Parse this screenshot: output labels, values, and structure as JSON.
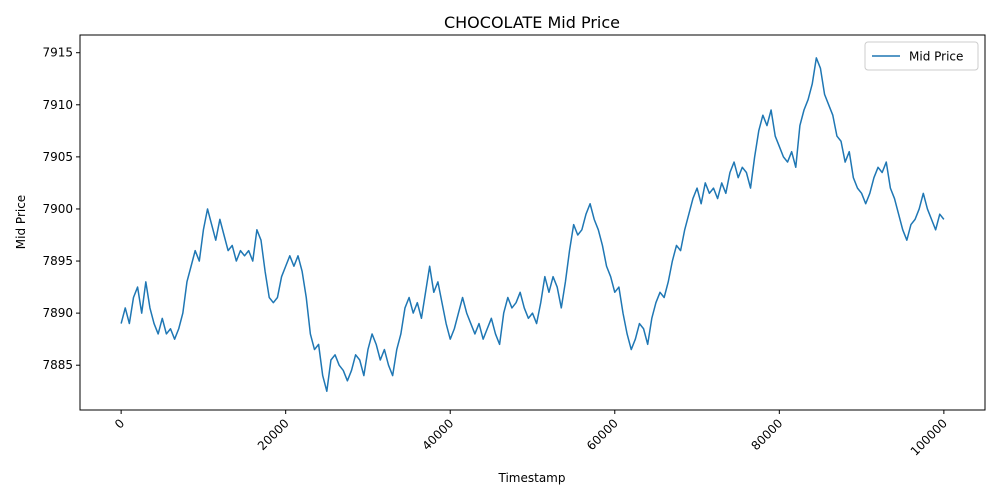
{
  "chart_data": {
    "type": "line",
    "title": "CHOCOLATE Mid Price",
    "xlabel": "Timestamp",
    "ylabel": "Mid Price",
    "xlim": [
      -5000,
      105000
    ],
    "ylim": [
      7880.7,
      7916.7
    ],
    "xticks": [
      0,
      20000,
      40000,
      60000,
      80000,
      100000
    ],
    "xtick_labels": [
      "0",
      "20000",
      "40000",
      "60000",
      "80000",
      "100000"
    ],
    "xtick_rotation": 45,
    "yticks": [
      7885,
      7890,
      7895,
      7900,
      7905,
      7910,
      7915
    ],
    "ytick_labels": [
      "7885",
      "7890",
      "7895",
      "7900",
      "7905",
      "7910",
      "7915"
    ],
    "grid": false,
    "legend_position": "top-right",
    "color": "#1f77b4",
    "series": [
      {
        "name": "Mid Price",
        "color": "#1f77b4",
        "x": [
          0,
          500,
          1000,
          1500,
          2000,
          2500,
          3000,
          3500,
          4000,
          4500,
          5000,
          5500,
          6000,
          6500,
          7000,
          7500,
          8000,
          8500,
          9000,
          9500,
          10000,
          10500,
          11000,
          11500,
          12000,
          12500,
          13000,
          13500,
          14000,
          14500,
          15000,
          15500,
          16000,
          16500,
          17000,
          17500,
          18000,
          18500,
          19000,
          19500,
          20000,
          20500,
          21000,
          21500,
          22000,
          22500,
          23000,
          23500,
          24000,
          24500,
          25000,
          25500,
          26000,
          26500,
          27000,
          27500,
          28000,
          28500,
          29000,
          29500,
          30000,
          30500,
          31000,
          31500,
          32000,
          32500,
          33000,
          33500,
          34000,
          34500,
          35000,
          35500,
          36000,
          36500,
          37000,
          37500,
          38000,
          38500,
          39000,
          39500,
          40000,
          40500,
          41000,
          41500,
          42000,
          42500,
          43000,
          43500,
          44000,
          44500,
          45000,
          45500,
          46000,
          46500,
          47000,
          47500,
          48000,
          48500,
          49000,
          49500,
          50000,
          50500,
          51000,
          51500,
          52000,
          52500,
          53000,
          53500,
          54000,
          54500,
          55000,
          55500,
          56000,
          56500,
          57000,
          57500,
          58000,
          58500,
          59000,
          59500,
          60000,
          60500,
          61000,
          61500,
          62000,
          62500,
          63000,
          63500,
          64000,
          64500,
          65000,
          65500,
          66000,
          66500,
          67000,
          67500,
          68000,
          68500,
          69000,
          69500,
          70000,
          70500,
          71000,
          71500,
          72000,
          72500,
          73000,
          73500,
          74000,
          74500,
          75000,
          75500,
          76000,
          76500,
          77000,
          77500,
          78000,
          78500,
          79000,
          79500,
          80000,
          80500,
          81000,
          81500,
          82000,
          82500,
          83000,
          83500,
          84000,
          84500,
          85000,
          85500,
          86000,
          86500,
          87000,
          87500,
          88000,
          88500,
          89000,
          89500,
          90000,
          90500,
          91000,
          91500,
          92000,
          92500,
          93000,
          93500,
          94000,
          94500,
          95000,
          95500,
          96000,
          96500,
          97000,
          97500,
          98000,
          98500,
          99000,
          99500,
          100000
        ],
        "y": [
          7889.0,
          7890.5,
          7889.0,
          7891.5,
          7892.5,
          7890.0,
          7893.0,
          7890.5,
          7889.0,
          7888.0,
          7889.5,
          7888.0,
          7888.5,
          7887.5,
          7888.5,
          7890.0,
          7893.0,
          7894.5,
          7896.0,
          7895.0,
          7898.0,
          7900.0,
          7898.5,
          7897.0,
          7899.0,
          7897.5,
          7896.0,
          7896.5,
          7895.0,
          7896.0,
          7895.5,
          7896.0,
          7895.0,
          7898.0,
          7897.0,
          7894.0,
          7891.5,
          7891.0,
          7891.5,
          7893.5,
          7894.5,
          7895.5,
          7894.5,
          7895.5,
          7894.0,
          7891.5,
          7888.0,
          7886.5,
          7887.0,
          7884.0,
          7882.5,
          7885.5,
          7886.0,
          7885.0,
          7884.5,
          7883.5,
          7884.5,
          7886.0,
          7885.5,
          7884.0,
          7886.5,
          7888.0,
          7887.0,
          7885.5,
          7886.5,
          7885.0,
          7884.0,
          7886.5,
          7888.0,
          7890.5,
          7891.5,
          7890.0,
          7891.0,
          7889.5,
          7892.0,
          7894.5,
          7892.0,
          7893.0,
          7891.0,
          7889.0,
          7887.5,
          7888.5,
          7890.0,
          7891.5,
          7890.0,
          7889.0,
          7888.0,
          7889.0,
          7887.5,
          7888.5,
          7889.5,
          7888.0,
          7887.0,
          7890.0,
          7891.5,
          7890.5,
          7891.0,
          7892.0,
          7890.5,
          7889.5,
          7890.0,
          7889.0,
          7891.0,
          7893.5,
          7892.0,
          7893.5,
          7892.5,
          7890.5,
          7893.0,
          7896.0,
          7898.5,
          7897.5,
          7898.0,
          7899.5,
          7900.5,
          7899.0,
          7898.0,
          7896.5,
          7894.5,
          7893.5,
          7892.0,
          7892.5,
          7890.0,
          7888.0,
          7886.5,
          7887.5,
          7889.0,
          7888.5,
          7887.0,
          7889.5,
          7891.0,
          7892.0,
          7891.5,
          7893.0,
          7895.0,
          7896.5,
          7896.0,
          7898.0,
          7899.5,
          7901.0,
          7902.0,
          7900.5,
          7902.5,
          7901.5,
          7902.0,
          7901.0,
          7902.5,
          7901.5,
          7903.5,
          7904.5,
          7903.0,
          7904.0,
          7903.5,
          7902.0,
          7905.0,
          7907.5,
          7909.0,
          7908.0,
          7909.5,
          7907.0,
          7906.0,
          7905.0,
          7904.5,
          7905.5,
          7904.0,
          7908.0,
          7909.5,
          7910.5,
          7912.0,
          7914.5,
          7913.5,
          7911.0,
          7910.0,
          7909.0,
          7907.0,
          7906.5,
          7904.5,
          7905.5,
          7903.0,
          7902.0,
          7901.5,
          7900.5,
          7901.5,
          7903.0,
          7904.0,
          7903.5,
          7904.5,
          7902.0,
          7901.0,
          7899.5,
          7898.0,
          7897.0,
          7898.5,
          7899.0,
          7900.0,
          7901.5,
          7900.0,
          7899.0,
          7898.0,
          7899.5,
          7899.0
        ]
      }
    ]
  }
}
